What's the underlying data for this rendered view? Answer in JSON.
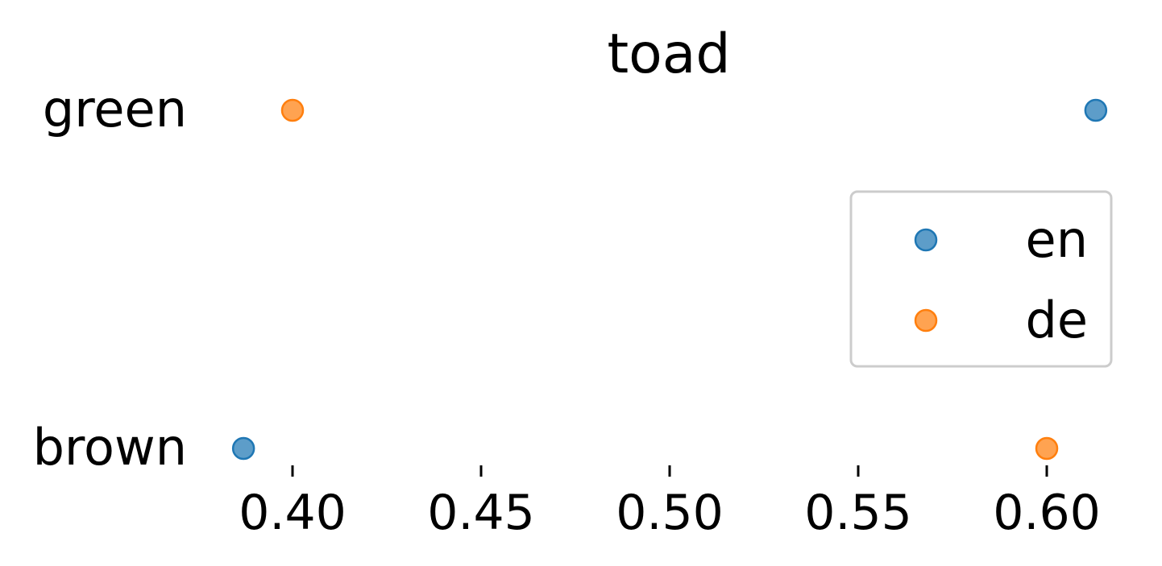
{
  "chart_data": {
    "type": "scatter",
    "title": "toad",
    "xlabel": "",
    "ylabel": "",
    "categories": [
      "brown",
      "green"
    ],
    "x_ticks": [
      0.4,
      0.45,
      0.5,
      0.55,
      0.6
    ],
    "x_tick_labels": [
      "0.40",
      "0.45",
      "0.50",
      "0.55",
      "0.60"
    ],
    "xlim": [
      0.352,
      0.617
    ],
    "grid": false,
    "legend_position": "center-right",
    "series": [
      {
        "name": "en",
        "color": "#1f77b4",
        "values": {
          "green": 0.613,
          "brown": 0.387
        }
      },
      {
        "name": "de",
        "color": "#ff7f0e",
        "values": {
          "green": 0.4,
          "brown": 0.6
        }
      }
    ]
  }
}
